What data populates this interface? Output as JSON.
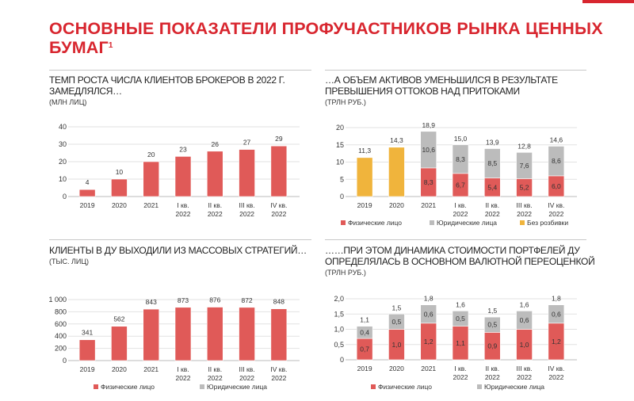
{
  "header": {
    "title": "ОСНОВНЫЕ ПОКАЗАТЕЛИ ПРОФУЧАСТНИКОВ РЫНКА ЦЕННЫХ БУМАГ",
    "footnote_mark": "1"
  },
  "colors": {
    "accent": "#d8262f",
    "individuals": "#e05a58",
    "legal": "#bcbcbc",
    "unsplit": "#f0b43c"
  },
  "chart_data": [
    {
      "type": "bar",
      "title": "ТЕМП РОСТА ЧИСЛА КЛИЕНТОВ БРОКЕРОВ В 2022 Г. ЗАМЕДЛЯЛСЯ…",
      "unit": "(МЛН ЛИЦ)",
      "categories": [
        "2019",
        "2020",
        "2021",
        "I кв. 2022",
        "II кв. 2022",
        "III кв. 2022",
        "IV кв. 2022"
      ],
      "series": [
        {
          "name": "",
          "color": "individuals",
          "values": [
            4,
            10,
            20,
            23,
            26,
            27,
            29
          ]
        }
      ],
      "totals": [
        4,
        10,
        20,
        23,
        26,
        27,
        29
      ],
      "ylim": [
        0,
        40
      ],
      "yticks": [
        0,
        10,
        20,
        30,
        40
      ],
      "ytick_labels": [
        "0",
        "10",
        "20",
        "30",
        "40"
      ],
      "decimals": 0,
      "legend": []
    },
    {
      "type": "bar",
      "stacked": true,
      "title": "…А ОБЪЕМ АКТИВОВ УМЕНЬШИЛСЯ В РЕЗУЛЬТАТЕ ПРЕВЫШЕНИЯ ОТТОКОВ НАД ПРИТОКАМИ",
      "unit": "(ТРЛН РУБ.)",
      "categories": [
        "2019",
        "2020",
        "2021",
        "I кв. 2022",
        "II кв. 2022",
        "III кв. 2022",
        "IV кв. 2022"
      ],
      "series": [
        {
          "name": "Без розбивки",
          "color": "unsplit",
          "values": [
            11.3,
            14.3,
            null,
            null,
            null,
            null,
            null
          ]
        },
        {
          "name": "Физические лицо",
          "color": "individuals",
          "values": [
            null,
            null,
            8.3,
            6.7,
            5.4,
            5.2,
            6.0
          ]
        },
        {
          "name": "Юридические лица",
          "color": "legal",
          "values": [
            null,
            null,
            10.6,
            8.3,
            8.5,
            7.6,
            8.6
          ]
        }
      ],
      "totals": [
        11.3,
        14.3,
        18.9,
        15.0,
        13.9,
        12.8,
        14.6
      ],
      "ylim": [
        0,
        20
      ],
      "yticks": [
        0,
        5,
        10,
        15,
        20
      ],
      "ytick_labels": [
        "0",
        "5",
        "10",
        "15",
        "20"
      ],
      "decimals": 1,
      "legend": [
        {
          "label": "Физические лицо",
          "color": "individuals"
        },
        {
          "label": "Юридические лица",
          "color": "legal"
        },
        {
          "label": "Без розбивки",
          "color": "unsplit"
        }
      ],
      "legend_placement": "bottom"
    },
    {
      "type": "bar",
      "title": "КЛИЕНТЫ В ДУ ВЫХОДИЛИ ИЗ МАССОВЫХ СТРАТЕГИЙ…",
      "unit": "(ТЫС. ЛИЦ)",
      "categories": [
        "2019",
        "2020",
        "2021",
        "I кв. 2022",
        "II кв. 2022",
        "III кв. 2022",
        "IV кв. 2022"
      ],
      "series": [
        {
          "name": "Физические лицо",
          "color": "individuals",
          "values": [
            341,
            562,
            843,
            873,
            876,
            872,
            848
          ]
        }
      ],
      "totals": [
        341,
        562,
        843,
        873,
        876,
        872,
        848
      ],
      "ylim": [
        0,
        1000
      ],
      "yticks": [
        0,
        200,
        400,
        600,
        800,
        1000
      ],
      "ytick_labels": [
        "0",
        "200",
        "400",
        "600",
        "800",
        "1 000"
      ],
      "decimals": 0,
      "legend": [
        {
          "label": "Физические лицо",
          "color": "individuals"
        },
        {
          "label": "Юридические лица",
          "color": "legal"
        }
      ],
      "legend_placement": "bottom"
    },
    {
      "type": "bar",
      "stacked": true,
      "title": "……ПРИ ЭТОМ ДИНАМИКА СТОИМОСТИ ПОРТФЕЛЕЙ ДУ ОПРЕДЕЛЯЛАСЬ В ОСНОВНОМ ВАЛЮТНОЙ ПЕРЕОЦЕНКОЙ",
      "unit": "(ТРЛН РУБ.)",
      "categories": [
        "2019",
        "2020",
        "2021",
        "I кв. 2022",
        "II кв. 2022",
        "III кв. 2022",
        "IV кв. 2022"
      ],
      "series": [
        {
          "name": "Физические лицо",
          "color": "individuals",
          "values": [
            0.7,
            1.0,
            1.2,
            1.1,
            0.9,
            1.0,
            1.2
          ]
        },
        {
          "name": "Юридические лица",
          "color": "legal",
          "values": [
            0.4,
            0.5,
            0.6,
            0.5,
            0.5,
            0.6,
            0.6
          ]
        }
      ],
      "totals": [
        1.1,
        1.5,
        1.8,
        1.6,
        1.5,
        1.6,
        1.8
      ],
      "ylim": [
        0,
        2
      ],
      "yticks": [
        0,
        0.5,
        1,
        1.5,
        2
      ],
      "ytick_labels": [
        "0",
        "0,5",
        "1,0",
        "1,5",
        "2,0"
      ],
      "decimals": 1,
      "legend": [
        {
          "label": "Физические лицо",
          "color": "individuals"
        },
        {
          "label": "Юридические лица",
          "color": "legal"
        }
      ],
      "legend_placement": "bottom"
    }
  ]
}
